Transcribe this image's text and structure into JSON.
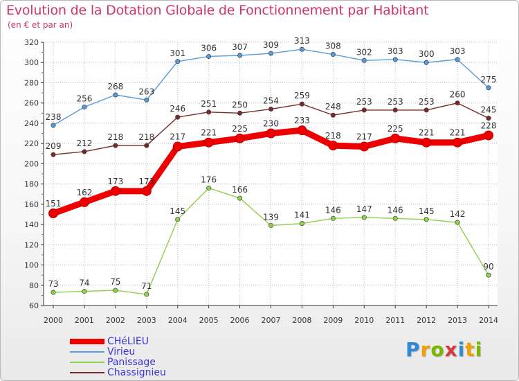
{
  "header": {
    "title": "Evolution de la Dotation Globale de Fonctionnement par Habitant",
    "subtitle": "(en € et par an)"
  },
  "logo": {
    "text": "Proxiti",
    "colors": [
      "#2f8ad6",
      "#f0a000",
      "#7ab800",
      "#d63a3a",
      "#2f8ad6",
      "#f0a000",
      "#7ab800"
    ]
  },
  "chart_data": {
    "type": "line",
    "title": "Evolution de la Dotation Globale de Fonctionnement par Habitant",
    "subtitle": "(en € et par an)",
    "xlabel": "",
    "ylabel": "",
    "ylim": [
      60,
      320
    ],
    "yticks": [
      60,
      80,
      100,
      120,
      140,
      160,
      180,
      200,
      220,
      240,
      260,
      280,
      300,
      320
    ],
    "grid": true,
    "legend_position": "bottom-left",
    "categories": [
      "2000",
      "2001",
      "2002",
      "2003",
      "2004",
      "2005",
      "2006",
      "2007",
      "2008",
      "2009",
      "2010",
      "2011",
      "2012",
      "2013",
      "2014"
    ],
    "series": [
      {
        "name": "Virieu",
        "color": "#5a9ad6",
        "bold": false,
        "values": [
          238,
          256,
          268,
          263,
          301,
          306,
          307,
          309,
          313,
          308,
          302,
          303,
          300,
          303,
          275
        ]
      },
      {
        "name": "Chassignieu",
        "color": "#7a2a2a",
        "bold": false,
        "values": [
          209,
          212,
          218,
          218,
          246,
          251,
          250,
          254,
          259,
          248,
          253,
          253,
          253,
          260,
          245
        ]
      },
      {
        "name": "Panissage",
        "color": "#8fd04a",
        "bold": false,
        "values": [
          73,
          74,
          75,
          71,
          145,
          176,
          166,
          139,
          141,
          146,
          147,
          146,
          145,
          142,
          90
        ]
      },
      {
        "name": "CHéLIEU",
        "color": "#ee0000",
        "bold": true,
        "values": [
          151,
          162,
          173,
          173,
          217,
          221,
          225,
          230,
          233,
          218,
          217,
          225,
          221,
          221,
          228
        ]
      }
    ],
    "legend_order": [
      "CHéLIEU",
      "Virieu",
      "Panissage",
      "Chassignieu"
    ]
  }
}
